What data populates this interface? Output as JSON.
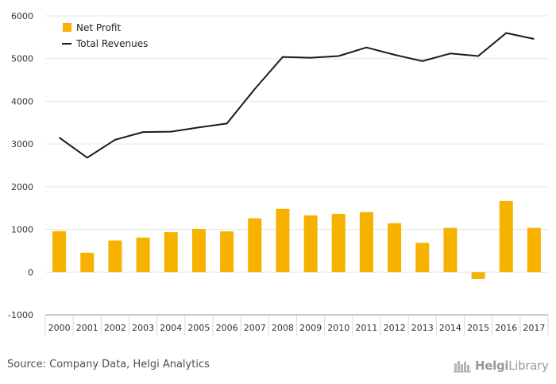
{
  "chart_data": {
    "type": "bar+line",
    "categories": [
      "2000",
      "2001",
      "2002",
      "2003",
      "2004",
      "2005",
      "2006",
      "2007",
      "2008",
      "2009",
      "2010",
      "2011",
      "2012",
      "2013",
      "2014",
      "2015",
      "2016",
      "2017"
    ],
    "series": [
      {
        "name": "Net Profit",
        "type": "bar",
        "color": "#f7b200",
        "values": [
          960,
          455,
          740,
          810,
          935,
          1010,
          955,
          1260,
          1480,
          1330,
          1365,
          1405,
          1145,
          685,
          1035,
          -160,
          1665,
          1035
        ]
      },
      {
        "name": "Total Revenues",
        "type": "line",
        "color": "#1a1a1a",
        "values": [
          3150,
          2680,
          3100,
          3280,
          3290,
          3390,
          3480,
          4290,
          5040,
          5020,
          5060,
          5260,
          5090,
          4940,
          5120,
          5060,
          5600,
          5460
        ]
      }
    ],
    "ylim": [
      -1000,
      6000
    ],
    "yticks": [
      -1000,
      0,
      1000,
      2000,
      3000,
      4000,
      5000,
      6000
    ],
    "grid": true,
    "legend_position": "top-left"
  },
  "source_text": "Source: Company Data, Helgi Analytics",
  "logo": {
    "part1": "Helgi",
    "part2": "Library"
  }
}
